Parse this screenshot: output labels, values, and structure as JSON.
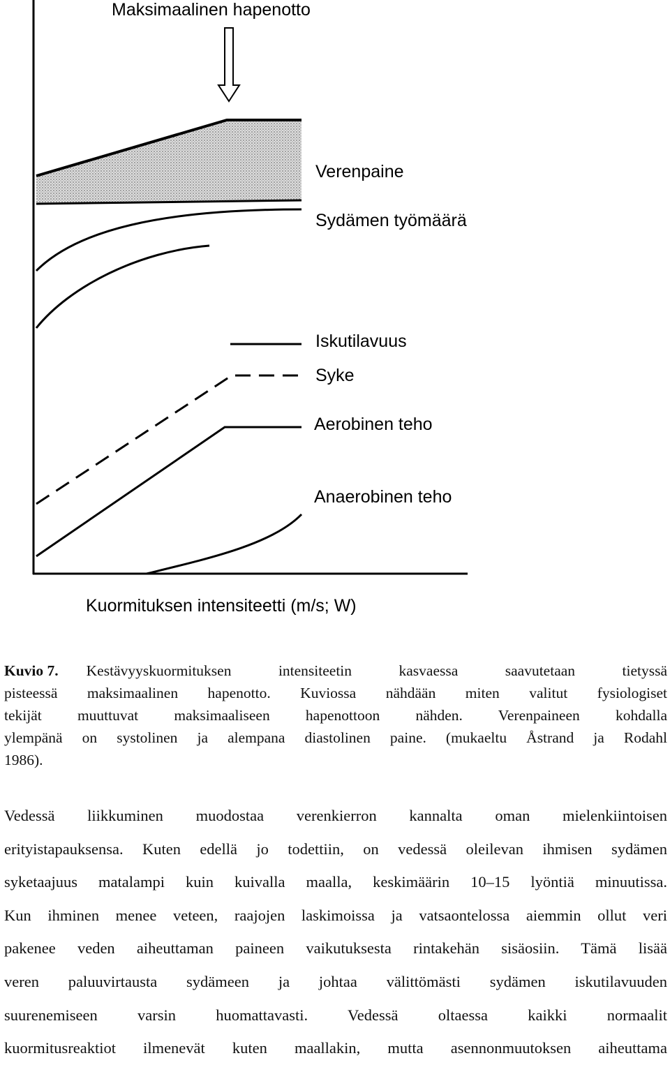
{
  "figure": {
    "title": "Maksimaalinen hapenotto",
    "labels": [
      "Verenpaine",
      "Sydämen työmäärä",
      "Iskutilavuus",
      "Syke",
      "Aerobinen teho",
      "Anaerobinen teho"
    ],
    "x_axis_label": "Kuormituksen intensiteetti (m/s; W)"
  },
  "caption": {
    "label": "Kuvio 7.",
    "lines": [
      "Kestävyyskuormituksen intensiteetin kasvaessa saavutetaan tietyssä",
      "pisteessä maksimaalinen hapenotto. Kuviossa nähdään miten valitut fysiologiset",
      "tekijät muuttuvat maksimaaliseen hapenottoon nähden. Verenpaineen kohdalla",
      "ylempänä on systolinen ja alempana diastolinen paine. (mukaeltu Åstrand ja Rodahl",
      "1986)."
    ]
  },
  "body": {
    "lines": [
      "Vedessä liikkuminen muodostaa verenkierron kannalta oman mielenkiintoisen",
      "erityistapauksensa. Kuten edellä jo todettiin, on vedessä oleilevan ihmisen sydämen",
      "syketaajuus matalampi kuin kuivalla maalla, keskimäärin 10–15 lyöntiä minuutissa.",
      "Kun ihminen menee veteen, raajojen laskimoissa ja vatsaontelossa aiemmin ollut veri",
      "pakenee veden aiheuttaman paineen vaikutuksesta rintakehän sisäosiin. Tämä lisää",
      "veren paluuvirtausta sydämeen ja johtaa välittömästi sydämen iskutilavuuden",
      "suurenemiseen varsin huomattavasti. Vedessä oltaessa kaikki normaalit",
      "kuormitusreaktiot ilmenevät kuten maallakin, mutta asennonmuutoksen aiheuttama"
    ]
  }
}
